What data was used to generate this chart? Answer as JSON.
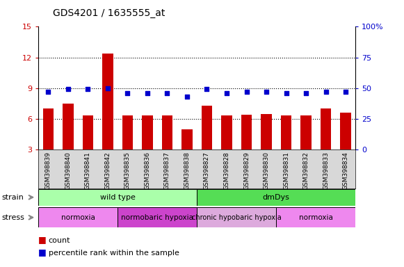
{
  "title": "GDS4201 / 1635555_at",
  "samples": [
    "GSM398839",
    "GSM398840",
    "GSM398841",
    "GSM398842",
    "GSM398835",
    "GSM398836",
    "GSM398837",
    "GSM398838",
    "GSM398827",
    "GSM398828",
    "GSM398829",
    "GSM398830",
    "GSM398831",
    "GSM398832",
    "GSM398833",
    "GSM398834"
  ],
  "counts": [
    7.0,
    7.5,
    6.3,
    12.4,
    6.3,
    6.3,
    6.3,
    5.0,
    7.3,
    6.3,
    6.4,
    6.5,
    6.3,
    6.3,
    7.0,
    6.6
  ],
  "percentiles": [
    47,
    49,
    49,
    50,
    46,
    46,
    46,
    43,
    49,
    46,
    47,
    47,
    46,
    46,
    47,
    47
  ],
  "bar_color": "#cc0000",
  "dot_color": "#0000cc",
  "ylim_left": [
    3,
    15
  ],
  "ylim_right": [
    0,
    100
  ],
  "yticks_left": [
    3,
    6,
    9,
    12,
    15
  ],
  "yticks_right": [
    0,
    25,
    50,
    75,
    100
  ],
  "ytick_labels_right": [
    "0",
    "25",
    "50",
    "75",
    "100%"
  ],
  "hgrid_vals": [
    6,
    9,
    12
  ],
  "strain_groups": [
    {
      "label": "wild type",
      "start": 0,
      "end": 8,
      "color": "#aaffaa"
    },
    {
      "label": "dmDys",
      "start": 8,
      "end": 16,
      "color": "#55dd55"
    }
  ],
  "stress_groups": [
    {
      "label": "normoxia",
      "start": 0,
      "end": 4,
      "color": "#ee88ee"
    },
    {
      "label": "normobaric hypoxia",
      "start": 4,
      "end": 8,
      "color": "#cc44cc"
    },
    {
      "label": "chronic hypobaric hypoxia",
      "start": 8,
      "end": 12,
      "color": "#ddaadd"
    },
    {
      "label": "normoxia",
      "start": 12,
      "end": 16,
      "color": "#ee88ee"
    }
  ],
  "tick_color_left": "#cc0000",
  "tick_color_right": "#0000cc",
  "background_color": "#ffffff",
  "xtick_bg_color": "#d8d8d8"
}
